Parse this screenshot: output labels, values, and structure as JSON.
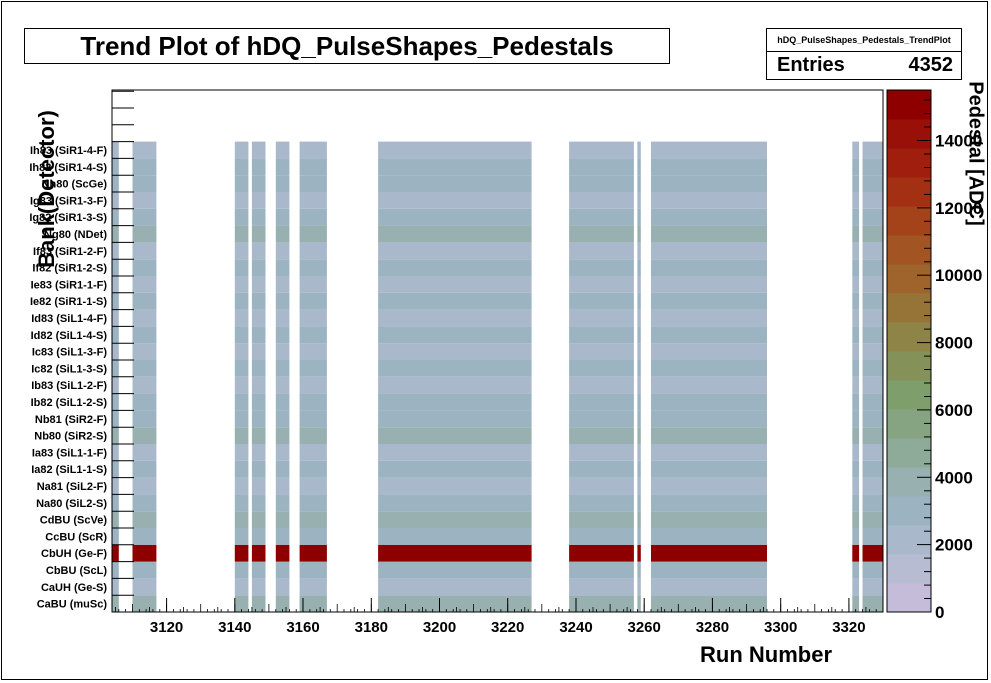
{
  "title": "Trend Plot of hDQ_PulseShapes_Pedestals",
  "stats": {
    "name": "hDQ_PulseShapes_Pedestals_TrendPlot",
    "entries_label": "Entries",
    "entries_value": "4352"
  },
  "chart_data": {
    "type": "heatmap",
    "title": "Trend Plot of hDQ_PulseShapes_Pedestals",
    "xlabel": "Run Number",
    "ylabel": "Bank(Detector)",
    "zlabel": "Pedestal [ADC]",
    "xlim": [
      3104,
      3330
    ],
    "zlim": [
      0,
      15500
    ],
    "x_ticks": [
      "3120",
      "3140",
      "3160",
      "3180",
      "3200",
      "3220",
      "3240",
      "3260",
      "3280",
      "3300",
      "3320"
    ],
    "z_ticks": [
      "0",
      "2000",
      "4000",
      "6000",
      "8000",
      "10000",
      "12000",
      "14000"
    ],
    "y_categories": [
      "CaBU (muSc)",
      "CaUH (Ge-S)",
      "CbBU (ScL)",
      "CbUH (Ge-F)",
      "CcBU (ScR)",
      "CdBU (ScVe)",
      "Na80 (SiL2-S)",
      "Na81 (SiL2-F)",
      "Ia82 (SiL1-1-S)",
      "Ia83 (SiL1-1-F)",
      "Nb80 (SiR2-S)",
      "Nb81 (SiR2-F)",
      "Ib82 (SiL1-2-S)",
      "Ib83 (SiL1-2-F)",
      "Ic82 (SiL1-3-S)",
      "Ic83 (SiL1-3-F)",
      "Id82 (SiL1-4-S)",
      "Id83 (SiL1-4-F)",
      "Ie82 (SiR1-1-S)",
      "Ie83 (SiR1-1-F)",
      "If82 (SiR1-2-S)",
      "If83 (SiR1-2-F)",
      "Ng80 (NDet)",
      "Ig82 (SiR1-3-S)",
      "Ig83 (SiR1-3-F)",
      "Nh80 (ScGe)",
      "Ih82 (SiR1-4-S)",
      "Ih83 (SiR1-4-F)"
    ],
    "run_ranges": [
      [
        3104,
        3106
      ],
      [
        3110,
        3117
      ],
      [
        3140,
        3144
      ],
      [
        3145,
        3149
      ],
      [
        3152,
        3156
      ],
      [
        3159,
        3167
      ],
      [
        3182,
        3227
      ],
      [
        3238,
        3257
      ],
      [
        3258,
        3259
      ],
      [
        3262,
        3296
      ],
      [
        3321,
        3323
      ],
      [
        3324,
        3330
      ]
    ],
    "row_values": [
      3800,
      2500,
      3200,
      15000,
      2800,
      3500,
      3200,
      2500,
      3200,
      2500,
      3500,
      2800,
      3200,
      2500,
      3200,
      2500,
      3200,
      2500,
      3200,
      2500,
      3200,
      2500,
      3500,
      3200,
      2500,
      3200,
      3200,
      2500
    ],
    "colorscale": [
      "#c4bcd8",
      "#b8bcd2",
      "#aab8cc",
      "#9cb4c2",
      "#98b0b0",
      "#8eaa98",
      "#86a482",
      "#7e9e6c",
      "#84925a",
      "#8e8448",
      "#967438",
      "#9e642c",
      "#a25422",
      "#a4421a",
      "#a43014",
      "#a01e0e",
      "#981008",
      "#8e0000"
    ]
  }
}
